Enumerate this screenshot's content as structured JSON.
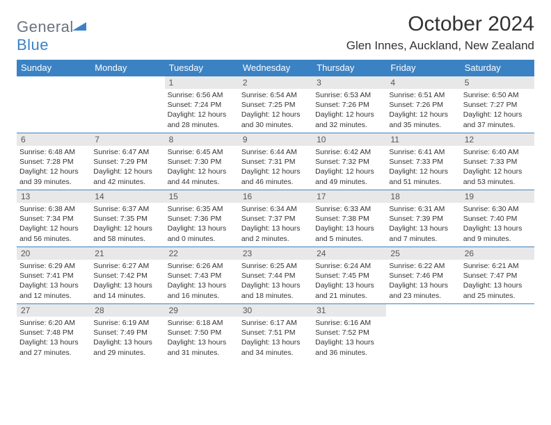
{
  "brand": {
    "part1": "General",
    "part2": "Blue"
  },
  "title": "October 2024",
  "location": "Glen Innes, Auckland, New Zealand",
  "colors": {
    "header_bg": "#3b82c4",
    "header_text": "#ffffff",
    "daynum_bg": "#e8e8e8",
    "daynum_text": "#555555",
    "body_text": "#333333",
    "logo_gray": "#6b7280",
    "logo_blue": "#3b82c4",
    "page_bg": "#ffffff",
    "row_border": "#3b82c4"
  },
  "fonts": {
    "title_pt": 30,
    "location_pt": 17,
    "dow_pt": 13,
    "daynum_pt": 12,
    "body_pt": 10.5
  },
  "dow": [
    "Sunday",
    "Monday",
    "Tuesday",
    "Wednesday",
    "Thursday",
    "Friday",
    "Saturday"
  ],
  "weeks": [
    [
      null,
      null,
      {
        "n": "1",
        "sr": "6:56 AM",
        "ss": "7:24 PM",
        "dl": "12 hours and 28 minutes."
      },
      {
        "n": "2",
        "sr": "6:54 AM",
        "ss": "7:25 PM",
        "dl": "12 hours and 30 minutes."
      },
      {
        "n": "3",
        "sr": "6:53 AM",
        "ss": "7:26 PM",
        "dl": "12 hours and 32 minutes."
      },
      {
        "n": "4",
        "sr": "6:51 AM",
        "ss": "7:26 PM",
        "dl": "12 hours and 35 minutes."
      },
      {
        "n": "5",
        "sr": "6:50 AM",
        "ss": "7:27 PM",
        "dl": "12 hours and 37 minutes."
      }
    ],
    [
      {
        "n": "6",
        "sr": "6:48 AM",
        "ss": "7:28 PM",
        "dl": "12 hours and 39 minutes."
      },
      {
        "n": "7",
        "sr": "6:47 AM",
        "ss": "7:29 PM",
        "dl": "12 hours and 42 minutes."
      },
      {
        "n": "8",
        "sr": "6:45 AM",
        "ss": "7:30 PM",
        "dl": "12 hours and 44 minutes."
      },
      {
        "n": "9",
        "sr": "6:44 AM",
        "ss": "7:31 PM",
        "dl": "12 hours and 46 minutes."
      },
      {
        "n": "10",
        "sr": "6:42 AM",
        "ss": "7:32 PM",
        "dl": "12 hours and 49 minutes."
      },
      {
        "n": "11",
        "sr": "6:41 AM",
        "ss": "7:33 PM",
        "dl": "12 hours and 51 minutes."
      },
      {
        "n": "12",
        "sr": "6:40 AM",
        "ss": "7:33 PM",
        "dl": "12 hours and 53 minutes."
      }
    ],
    [
      {
        "n": "13",
        "sr": "6:38 AM",
        "ss": "7:34 PM",
        "dl": "12 hours and 56 minutes."
      },
      {
        "n": "14",
        "sr": "6:37 AM",
        "ss": "7:35 PM",
        "dl": "12 hours and 58 minutes."
      },
      {
        "n": "15",
        "sr": "6:35 AM",
        "ss": "7:36 PM",
        "dl": "13 hours and 0 minutes."
      },
      {
        "n": "16",
        "sr": "6:34 AM",
        "ss": "7:37 PM",
        "dl": "13 hours and 2 minutes."
      },
      {
        "n": "17",
        "sr": "6:33 AM",
        "ss": "7:38 PM",
        "dl": "13 hours and 5 minutes."
      },
      {
        "n": "18",
        "sr": "6:31 AM",
        "ss": "7:39 PM",
        "dl": "13 hours and 7 minutes."
      },
      {
        "n": "19",
        "sr": "6:30 AM",
        "ss": "7:40 PM",
        "dl": "13 hours and 9 minutes."
      }
    ],
    [
      {
        "n": "20",
        "sr": "6:29 AM",
        "ss": "7:41 PM",
        "dl": "13 hours and 12 minutes."
      },
      {
        "n": "21",
        "sr": "6:27 AM",
        "ss": "7:42 PM",
        "dl": "13 hours and 14 minutes."
      },
      {
        "n": "22",
        "sr": "6:26 AM",
        "ss": "7:43 PM",
        "dl": "13 hours and 16 minutes."
      },
      {
        "n": "23",
        "sr": "6:25 AM",
        "ss": "7:44 PM",
        "dl": "13 hours and 18 minutes."
      },
      {
        "n": "24",
        "sr": "6:24 AM",
        "ss": "7:45 PM",
        "dl": "13 hours and 21 minutes."
      },
      {
        "n": "25",
        "sr": "6:22 AM",
        "ss": "7:46 PM",
        "dl": "13 hours and 23 minutes."
      },
      {
        "n": "26",
        "sr": "6:21 AM",
        "ss": "7:47 PM",
        "dl": "13 hours and 25 minutes."
      }
    ],
    [
      {
        "n": "27",
        "sr": "6:20 AM",
        "ss": "7:48 PM",
        "dl": "13 hours and 27 minutes."
      },
      {
        "n": "28",
        "sr": "6:19 AM",
        "ss": "7:49 PM",
        "dl": "13 hours and 29 minutes."
      },
      {
        "n": "29",
        "sr": "6:18 AM",
        "ss": "7:50 PM",
        "dl": "13 hours and 31 minutes."
      },
      {
        "n": "30",
        "sr": "6:17 AM",
        "ss": "7:51 PM",
        "dl": "13 hours and 34 minutes."
      },
      {
        "n": "31",
        "sr": "6:16 AM",
        "ss": "7:52 PM",
        "dl": "13 hours and 36 minutes."
      },
      null,
      null
    ]
  ],
  "labels": {
    "sunrise": "Sunrise:",
    "sunset": "Sunset:",
    "daylight": "Daylight:"
  }
}
